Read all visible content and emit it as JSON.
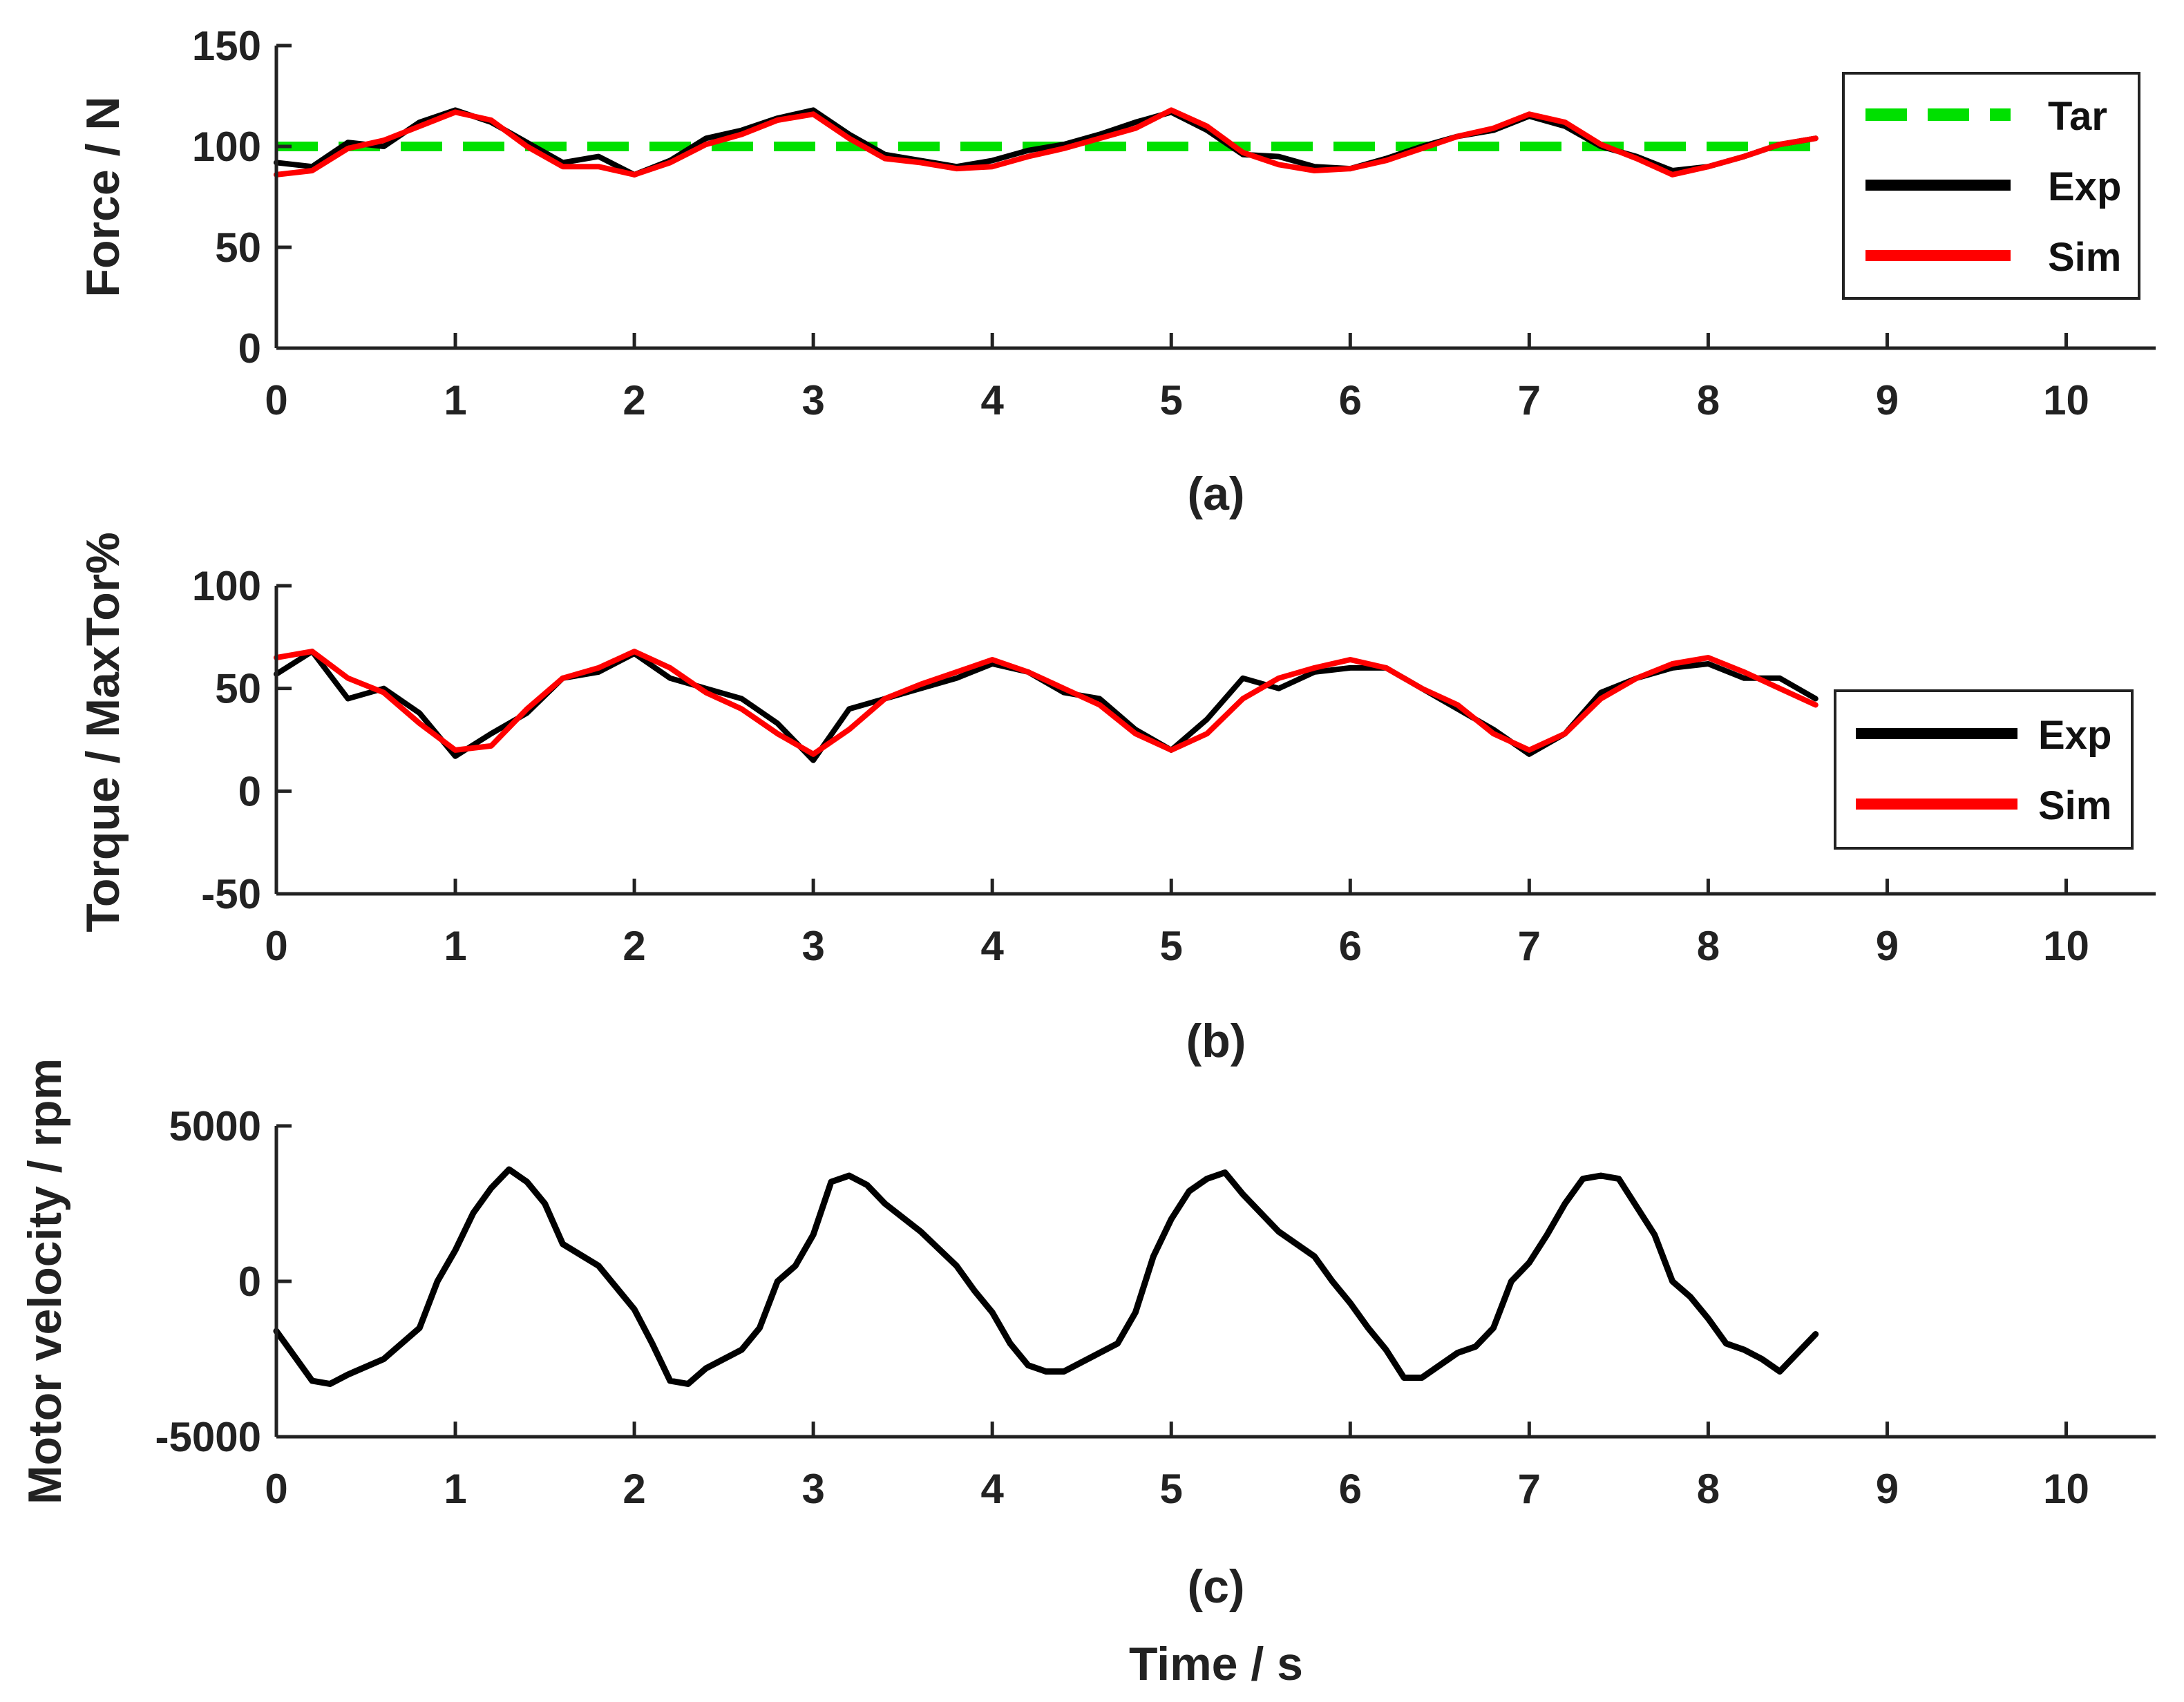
{
  "chart_data": [
    {
      "type": "line",
      "id": "a",
      "panel_label": "(a)",
      "xlabel": "",
      "ylabel": "Force / N",
      "xlim": [
        0,
        10.5
      ],
      "ylim": [
        0,
        150
      ],
      "xticks": [
        0,
        1,
        2,
        3,
        4,
        5,
        6,
        7,
        8,
        9,
        10
      ],
      "yticks": [
        0,
        50,
        100,
        150
      ],
      "legend": {
        "position": "top-right"
      },
      "series": [
        {
          "name": "Tar",
          "color": "#00e000",
          "style": "dashed",
          "x": [
            0,
            8.6
          ],
          "y": [
            100,
            100
          ]
        },
        {
          "name": "Exp",
          "color": "#000000",
          "style": "solid",
          "x": [
            0,
            0.2,
            0.4,
            0.6,
            0.8,
            1.0,
            1.2,
            1.4,
            1.6,
            1.8,
            2.0,
            2.2,
            2.4,
            2.6,
            2.8,
            3.0,
            3.2,
            3.4,
            3.6,
            3.8,
            4.0,
            4.2,
            4.4,
            4.6,
            4.8,
            5.0,
            5.2,
            5.4,
            5.6,
            5.8,
            6.0,
            6.2,
            6.4,
            6.6,
            6.8,
            7.0,
            7.2,
            7.4,
            7.6,
            7.8,
            8.0,
            8.2,
            8.4,
            8.6
          ],
          "y": [
            92,
            90,
            102,
            100,
            112,
            118,
            112,
            102,
            92,
            95,
            86,
            93,
            104,
            108,
            114,
            118,
            106,
            96,
            93,
            90,
            93,
            98,
            101,
            106,
            112,
            117,
            108,
            96,
            95,
            90,
            89,
            94,
            100,
            105,
            108,
            115,
            110,
            100,
            95,
            88,
            90,
            95,
            101,
            104
          ]
        },
        {
          "name": "Sim",
          "color": "#ff0000",
          "style": "solid",
          "x": [
            0,
            0.2,
            0.4,
            0.6,
            0.8,
            1.0,
            1.2,
            1.4,
            1.6,
            1.8,
            2.0,
            2.2,
            2.4,
            2.6,
            2.8,
            3.0,
            3.2,
            3.4,
            3.6,
            3.8,
            4.0,
            4.2,
            4.4,
            4.6,
            4.8,
            5.0,
            5.2,
            5.4,
            5.6,
            5.8,
            6.0,
            6.2,
            6.4,
            6.6,
            6.8,
            7.0,
            7.2,
            7.4,
            7.6,
            7.8,
            8.0,
            8.2,
            8.4,
            8.6
          ],
          "y": [
            86,
            88,
            99,
            103,
            110,
            117,
            113,
            100,
            90,
            90,
            86,
            92,
            101,
            106,
            113,
            116,
            104,
            94,
            92,
            89,
            90,
            95,
            99,
            104,
            109,
            118,
            110,
            97,
            91,
            88,
            89,
            93,
            99,
            105,
            109,
            116,
            112,
            101,
            94,
            86,
            90,
            95,
            101,
            104
          ]
        }
      ]
    },
    {
      "type": "line",
      "id": "b",
      "panel_label": "(b)",
      "xlabel": "",
      "ylabel": "Torque / MaxTor%",
      "xlim": [
        0,
        10.5
      ],
      "ylim": [
        -50,
        100
      ],
      "xticks": [
        0,
        1,
        2,
        3,
        4,
        5,
        6,
        7,
        8,
        9,
        10
      ],
      "yticks": [
        -50,
        0,
        50,
        100
      ],
      "legend": {
        "position": "right"
      },
      "series": [
        {
          "name": "Exp",
          "color": "#000000",
          "style": "solid",
          "x": [
            0,
            0.2,
            0.4,
            0.6,
            0.8,
            1.0,
            1.2,
            1.4,
            1.6,
            1.8,
            2.0,
            2.2,
            2.4,
            2.6,
            2.8,
            3.0,
            3.2,
            3.4,
            3.6,
            3.8,
            4.0,
            4.2,
            4.4,
            4.6,
            4.8,
            5.0,
            5.2,
            5.4,
            5.6,
            5.8,
            6.0,
            6.2,
            6.4,
            6.6,
            6.8,
            7.0,
            7.2,
            7.4,
            7.6,
            7.8,
            8.0,
            8.2,
            8.4,
            8.6
          ],
          "y": [
            57,
            68,
            45,
            50,
            38,
            17,
            28,
            38,
            55,
            58,
            67,
            55,
            50,
            45,
            33,
            15,
            40,
            45,
            50,
            55,
            62,
            58,
            48,
            45,
            30,
            20,
            35,
            55,
            50,
            58,
            60,
            60,
            50,
            40,
            30,
            18,
            28,
            48,
            55,
            60,
            62,
            55,
            55,
            45
          ]
        },
        {
          "name": "Sim",
          "color": "#ff0000",
          "style": "solid",
          "x": [
            0,
            0.2,
            0.4,
            0.6,
            0.8,
            1.0,
            1.2,
            1.4,
            1.6,
            1.8,
            2.0,
            2.2,
            2.4,
            2.6,
            2.8,
            3.0,
            3.2,
            3.4,
            3.6,
            3.8,
            4.0,
            4.2,
            4.4,
            4.6,
            4.8,
            5.0,
            5.2,
            5.4,
            5.6,
            5.8,
            6.0,
            6.2,
            6.4,
            6.6,
            6.8,
            7.0,
            7.2,
            7.4,
            7.6,
            7.8,
            8.0,
            8.2,
            8.4,
            8.6
          ],
          "y": [
            65,
            68,
            55,
            48,
            33,
            20,
            22,
            40,
            55,
            60,
            68,
            60,
            48,
            40,
            28,
            18,
            30,
            45,
            52,
            58,
            64,
            58,
            50,
            42,
            28,
            20,
            28,
            45,
            55,
            60,
            64,
            60,
            50,
            42,
            28,
            20,
            28,
            45,
            55,
            62,
            65,
            58,
            50,
            42
          ]
        }
      ]
    },
    {
      "type": "line",
      "id": "c",
      "panel_label": "(c)",
      "xlabel": "Time / s",
      "ylabel": "Motor velocity / rpm",
      "xlim": [
        0,
        10.5
      ],
      "ylim": [
        -5000,
        5000
      ],
      "xticks": [
        0,
        1,
        2,
        3,
        4,
        5,
        6,
        7,
        8,
        9,
        10
      ],
      "yticks": [
        -5000,
        0,
        5000
      ],
      "legend": null,
      "series": [
        {
          "name": "Exp",
          "color": "#000000",
          "style": "solid",
          "x": [
            0,
            0.1,
            0.2,
            0.3,
            0.4,
            0.6,
            0.8,
            0.9,
            1.0,
            1.1,
            1.2,
            1.3,
            1.4,
            1.5,
            1.6,
            1.8,
            1.9,
            2.0,
            2.1,
            2.2,
            2.3,
            2.4,
            2.6,
            2.7,
            2.8,
            2.9,
            3.0,
            3.1,
            3.2,
            3.3,
            3.4,
            3.6,
            3.8,
            3.9,
            4.0,
            4.1,
            4.2,
            4.3,
            4.4,
            4.6,
            4.7,
            4.8,
            4.9,
            5.0,
            5.1,
            5.2,
            5.3,
            5.4,
            5.6,
            5.8,
            5.9,
            6.0,
            6.1,
            6.2,
            6.3,
            6.4,
            6.6,
            6.7,
            6.8,
            6.9,
            7.0,
            7.1,
            7.2,
            7.3,
            7.4,
            7.5,
            7.6,
            7.7,
            7.8,
            7.9,
            8.0,
            8.1,
            8.2,
            8.3,
            8.4,
            8.6
          ],
          "y": [
            -1600,
            -2400,
            -3200,
            -3300,
            -3000,
            -2500,
            -1500,
            0,
            1000,
            2200,
            3000,
            3600,
            3200,
            2500,
            1200,
            500,
            -200,
            -900,
            -2000,
            -3200,
            -3300,
            -2800,
            -2200,
            -1500,
            0,
            500,
            1500,
            3200,
            3400,
            3100,
            2500,
            1600,
            500,
            -300,
            -1000,
            -2000,
            -2700,
            -2900,
            -2900,
            -2300,
            -2000,
            -1000,
            800,
            2000,
            2900,
            3300,
            3500,
            2800,
            1600,
            800,
            0,
            -700,
            -1500,
            -2200,
            -3100,
            -3100,
            -2300,
            -2100,
            -1500,
            0,
            600,
            1500,
            2500,
            3300,
            3400,
            3300,
            2400,
            1500,
            0,
            -500,
            -1200,
            -2000,
            -2200,
            -2500,
            -2900,
            -1700
          ]
        }
      ]
    }
  ]
}
